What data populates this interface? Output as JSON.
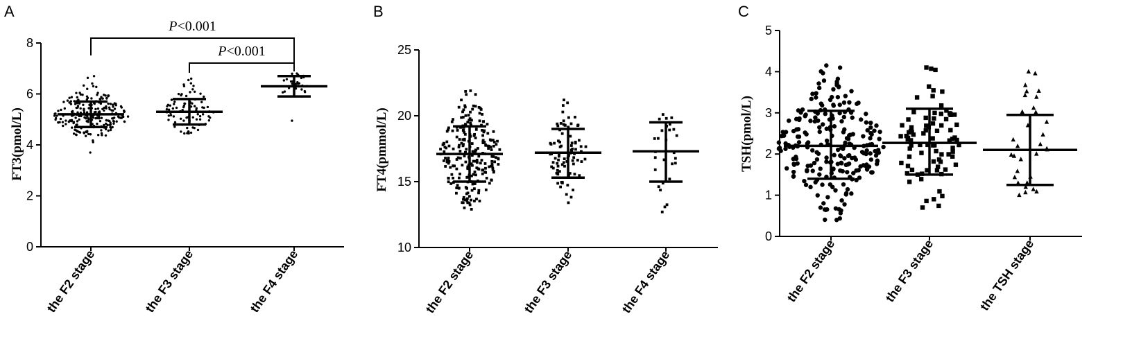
{
  "chart_data": [
    {
      "type": "scatter",
      "panel_label": "A",
      "ylabel": "FT3(pmol/L)",
      "ylim": [
        0,
        8
      ],
      "yticks": [
        0,
        2,
        4,
        6,
        8
      ],
      "marker": "circle",
      "categories": [
        "the F2 stage",
        "the F3 stage",
        "the F4 stage"
      ],
      "groups": [
        {
          "name": "the F2 stage",
          "n": 230,
          "mean": 5.2,
          "sd_low": 4.7,
          "sd_high": 5.7,
          "min": 3.7,
          "max": 6.7
        },
        {
          "name": "the F3 stage",
          "n": 85,
          "mean": 5.3,
          "sd_low": 4.8,
          "sd_high": 5.8,
          "min": 4.45,
          "max": 6.6
        },
        {
          "name": "the F4 stage",
          "n": 28,
          "mean": 6.3,
          "sd_low": 5.9,
          "sd_high": 6.7,
          "min": 4.95,
          "max": 6.8
        }
      ],
      "annotations": [
        {
          "text": "<0.001",
          "italic_prefix": "P",
          "from": 0,
          "to": 2,
          "level": 1
        },
        {
          "text": "<0.001",
          "italic_prefix": "P",
          "from": 1,
          "to": 2,
          "level": 0
        }
      ]
    },
    {
      "type": "scatter",
      "panel_label": "B",
      "ylabel": "FT4(pmmol/L)",
      "ylim": [
        10,
        25
      ],
      "yticks": [
        10,
        15,
        20,
        25
      ],
      "marker": "square",
      "categories": [
        "the F2 stage",
        "the F3 stage",
        "the F4 stage"
      ],
      "groups": [
        {
          "name": "the F2 stage",
          "n": 240,
          "mean": 17.1,
          "sd_low": 15.0,
          "sd_high": 19.2,
          "min": 12.9,
          "max": 21.9
        },
        {
          "name": "the F3 stage",
          "n": 85,
          "mean": 17.2,
          "sd_low": 15.3,
          "sd_high": 19.0,
          "min": 13.4,
          "max": 21.2
        },
        {
          "name": "the F4 stage",
          "n": 28,
          "mean": 17.3,
          "sd_low": 15.0,
          "sd_high": 19.5,
          "min": 12.7,
          "max": 20.1
        }
      ],
      "annotations": []
    },
    {
      "type": "scatter",
      "panel_label": "C",
      "ylabel": "TSH(pmol/L)",
      "ylim": [
        0,
        5
      ],
      "yticks": [
        0,
        1,
        2,
        3,
        4,
        5
      ],
      "marker": "mixed",
      "categories": [
        "the F2 stage",
        "the F3 stage",
        "the TSH stage"
      ],
      "groups": [
        {
          "name": "the F2 stage",
          "n": 240,
          "marker": "circle",
          "mean": 2.2,
          "sd_low": 1.4,
          "sd_high": 3.05,
          "min": 0.4,
          "max": 4.15
        },
        {
          "name": "the F3 stage",
          "n": 85,
          "marker": "square",
          "mean": 2.27,
          "sd_low": 1.5,
          "sd_high": 3.1,
          "min": 0.7,
          "max": 4.1
        },
        {
          "name": "the TSH stage",
          "n": 32,
          "marker": "triangle",
          "mean": 2.1,
          "sd_low": 1.25,
          "sd_high": 2.95,
          "min": 1.0,
          "max": 4.0
        }
      ],
      "annotations": []
    }
  ]
}
